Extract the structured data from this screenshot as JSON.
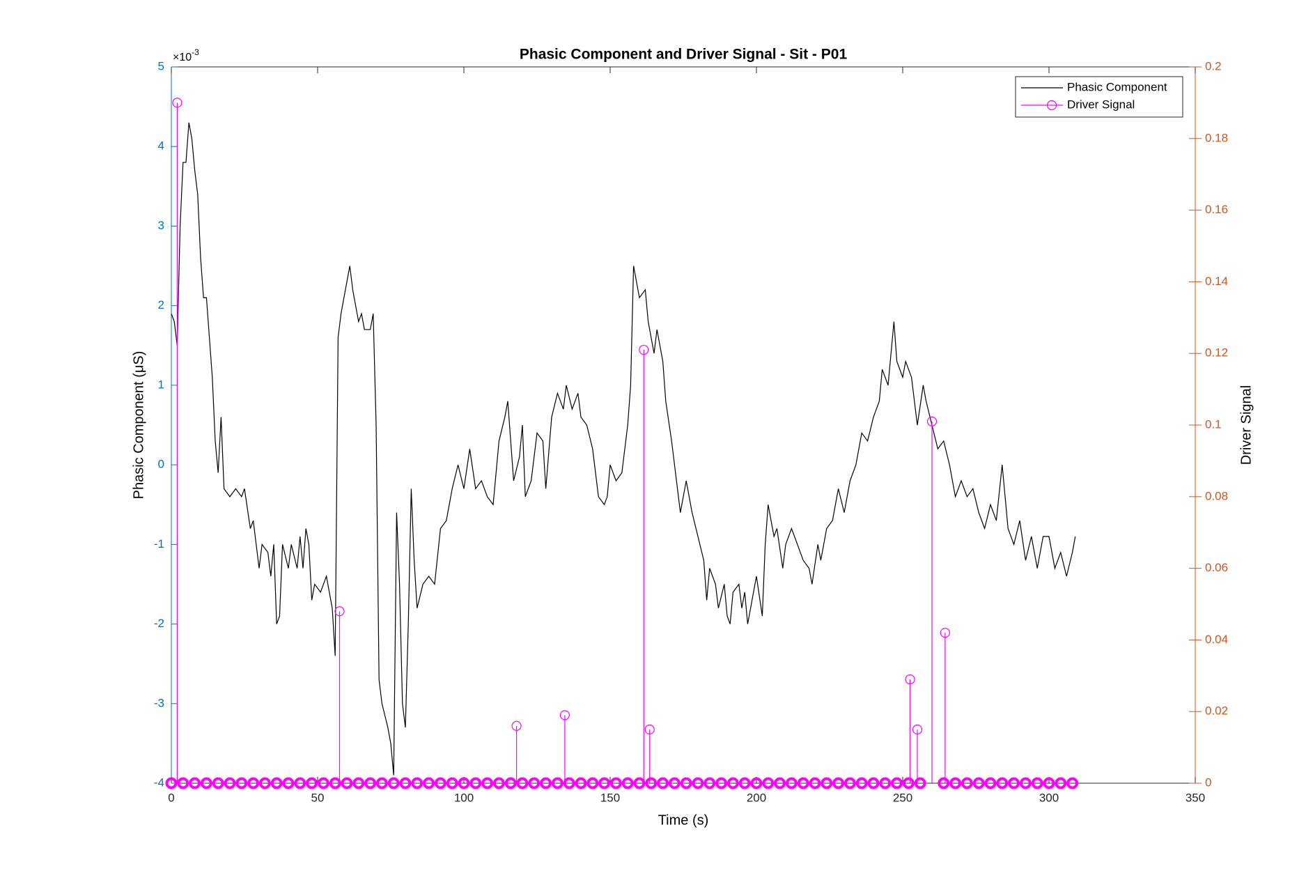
{
  "chart_data": {
    "type": "line",
    "title": "Phasic Component and Driver Signal - Sit - P01",
    "xlabel": "Time (s)",
    "ylabel": "Phasic Component (μS)",
    "y2label": "Driver Signal",
    "y_exponent_base": "×10",
    "y_exponent": "-3",
    "xlim": [
      0,
      350
    ],
    "xticks": [
      0,
      50,
      100,
      150,
      200,
      250,
      300,
      350
    ],
    "ylim": [
      -4,
      5
    ],
    "yticks": [
      -4,
      -3,
      -2,
      -1,
      0,
      1,
      2,
      3,
      4,
      5
    ],
    "y2lim": [
      0,
      0.2
    ],
    "y2ticks": [
      0,
      0.02,
      0.04,
      0.06,
      0.08,
      0.1,
      0.12,
      0.14,
      0.16,
      0.18,
      0.2
    ],
    "yaxis_color": "#0072bd",
    "y2axis_color": "#d95319",
    "legend": "northeast",
    "series": [
      {
        "name": "Phasic Component",
        "color": "#000000",
        "axis": "y",
        "style": "line",
        "x": [
          0,
          1,
          2,
          3,
          4,
          5,
          6,
          7,
          8,
          9,
          10,
          11,
          12,
          13,
          14,
          15,
          16,
          17,
          18,
          20,
          22,
          24,
          25,
          27,
          28,
          30,
          31,
          33,
          34,
          35,
          36,
          37,
          38,
          40,
          41,
          43,
          44,
          45,
          46,
          47,
          48,
          49,
          51,
          52,
          53,
          55,
          56,
          57,
          58,
          60,
          61,
          62,
          64,
          65,
          66,
          68,
          69,
          70,
          71,
          72,
          74,
          75,
          76,
          77,
          78,
          79,
          80,
          81,
          82,
          83,
          84,
          86,
          88,
          90,
          92,
          94,
          96,
          98,
          100,
          102,
          104,
          106,
          108,
          110,
          112,
          114,
          115,
          117,
          119,
          120,
          121,
          123,
          125,
          127,
          128,
          130,
          132,
          134,
          135,
          137,
          139,
          140,
          142,
          144,
          146,
          148,
          149,
          150,
          152,
          154,
          156,
          157,
          158,
          160,
          162,
          163,
          165,
          166,
          168,
          169,
          171,
          173,
          174,
          176,
          178,
          180,
          182,
          183,
          184,
          186,
          187,
          189,
          190,
          191,
          192,
          194,
          195,
          196,
          197,
          199,
          200,
          202,
          203,
          204,
          206,
          207,
          209,
          210,
          212,
          214,
          216,
          218,
          219,
          221,
          222,
          224,
          226,
          228,
          230,
          232,
          234,
          236,
          238,
          240,
          242,
          243,
          245,
          247,
          248,
          250,
          251,
          253,
          255,
          257,
          258,
          260,
          262,
          264,
          266,
          268,
          270,
          272,
          274,
          276,
          278,
          280,
          282,
          284,
          286,
          288,
          290,
          292,
          294,
          296,
          298,
          300,
          302,
          304,
          306,
          308,
          309
        ],
        "values": [
          1.9,
          1.8,
          1.5,
          3.0,
          3.8,
          3.8,
          4.3,
          4.1,
          3.7,
          3.4,
          2.6,
          2.1,
          2.1,
          1.6,
          1.1,
          0.3,
          -0.1,
          0.6,
          -0.3,
          -0.4,
          -0.3,
          -0.4,
          -0.3,
          -0.8,
          -0.7,
          -1.3,
          -1.0,
          -1.1,
          -1.4,
          -1.0,
          -2.0,
          -1.9,
          -1.0,
          -1.3,
          -1.0,
          -1.3,
          -0.9,
          -1.3,
          -0.8,
          -1.0,
          -1.7,
          -1.5,
          -1.6,
          -1.5,
          -1.4,
          -1.8,
          -2.4,
          1.6,
          1.9,
          2.3,
          2.5,
          2.2,
          1.8,
          1.9,
          1.7,
          1.7,
          1.9,
          0.5,
          -2.7,
          -3.0,
          -3.3,
          -3.5,
          -3.9,
          -0.6,
          -1.5,
          -3.0,
          -3.3,
          -2.0,
          -0.3,
          -1.2,
          -1.8,
          -1.5,
          -1.4,
          -1.5,
          -0.8,
          -0.7,
          -0.3,
          0.0,
          -0.3,
          0.2,
          -0.3,
          -0.2,
          -0.4,
          -0.5,
          0.3,
          0.6,
          0.8,
          -0.2,
          0.1,
          0.5,
          -0.4,
          -0.2,
          0.4,
          0.3,
          -0.3,
          0.6,
          0.9,
          0.7,
          1.0,
          0.7,
          0.9,
          0.6,
          0.5,
          0.2,
          -0.4,
          -0.5,
          -0.4,
          0.0,
          -0.2,
          -0.1,
          0.5,
          1.0,
          2.5,
          2.1,
          2.2,
          1.8,
          1.4,
          1.7,
          1.3,
          0.8,
          0.3,
          -0.3,
          -0.6,
          -0.2,
          -0.6,
          -0.9,
          -1.2,
          -1.7,
          -1.3,
          -1.5,
          -1.8,
          -1.5,
          -1.9,
          -2.0,
          -1.6,
          -1.5,
          -1.8,
          -1.6,
          -2.0,
          -1.6,
          -1.4,
          -1.9,
          -1.0,
          -0.5,
          -0.9,
          -0.8,
          -1.3,
          -1.0,
          -0.8,
          -1.0,
          -1.2,
          -1.3,
          -1.5,
          -1.0,
          -1.2,
          -0.8,
          -0.7,
          -0.3,
          -0.6,
          -0.2,
          0.0,
          0.4,
          0.3,
          0.6,
          0.8,
          1.2,
          1.0,
          1.8,
          1.3,
          1.1,
          1.3,
          1.1,
          0.5,
          1.0,
          0.8,
          0.5,
          0.2,
          0.3,
          0.0,
          -0.4,
          -0.2,
          -0.4,
          -0.3,
          -0.6,
          -0.8,
          -0.5,
          -0.7,
          0.0,
          -0.8,
          -1.0,
          -0.7,
          -1.2,
          -0.9,
          -1.3,
          -0.9,
          -0.9,
          -1.3,
          -1.1,
          -1.4,
          -1.1,
          -0.9
        ]
      },
      {
        "name": "Driver Signal",
        "color": "#ff00ff",
        "axis": "y2",
        "style": "stem",
        "x": [
          0,
          2,
          4,
          8,
          12,
          16,
          20,
          24,
          28,
          32,
          36,
          40,
          44,
          48,
          52,
          56,
          57.5,
          60,
          64,
          68,
          72,
          76,
          80,
          84,
          88,
          92,
          96,
          100,
          104,
          108,
          112,
          116,
          118,
          120,
          124,
          128,
          132,
          134.5,
          136,
          140,
          144,
          148,
          152,
          156,
          160,
          161.5,
          163.5,
          164,
          168,
          172,
          176,
          180,
          184,
          188,
          192,
          196,
          200,
          204,
          208,
          212,
          216,
          220,
          224,
          228,
          232,
          236,
          240,
          244,
          248,
          252,
          252.5,
          255,
          256,
          260,
          264,
          264.5,
          268,
          272,
          276,
          280,
          284,
          288,
          292,
          296,
          300,
          304,
          308
        ],
        "values": [
          0,
          0.19,
          0,
          0,
          0,
          0,
          0,
          0,
          0,
          0,
          0,
          0,
          0,
          0,
          0,
          0,
          0.048,
          0,
          0,
          0,
          0,
          0,
          0,
          0,
          0,
          0,
          0,
          0,
          0,
          0,
          0,
          0,
          0.016,
          0,
          0,
          0,
          0,
          0.019,
          0,
          0,
          0,
          0,
          0,
          0,
          0,
          0.121,
          0.015,
          0,
          0,
          0,
          0,
          0,
          0,
          0,
          0,
          0,
          0,
          0,
          0,
          0,
          0,
          0,
          0,
          0,
          0,
          0,
          0,
          0,
          0,
          0,
          0.029,
          0.015,
          0,
          0.101,
          0,
          0.042,
          0,
          0,
          0,
          0,
          0,
          0,
          0,
          0,
          0,
          0,
          0
        ]
      }
    ]
  }
}
